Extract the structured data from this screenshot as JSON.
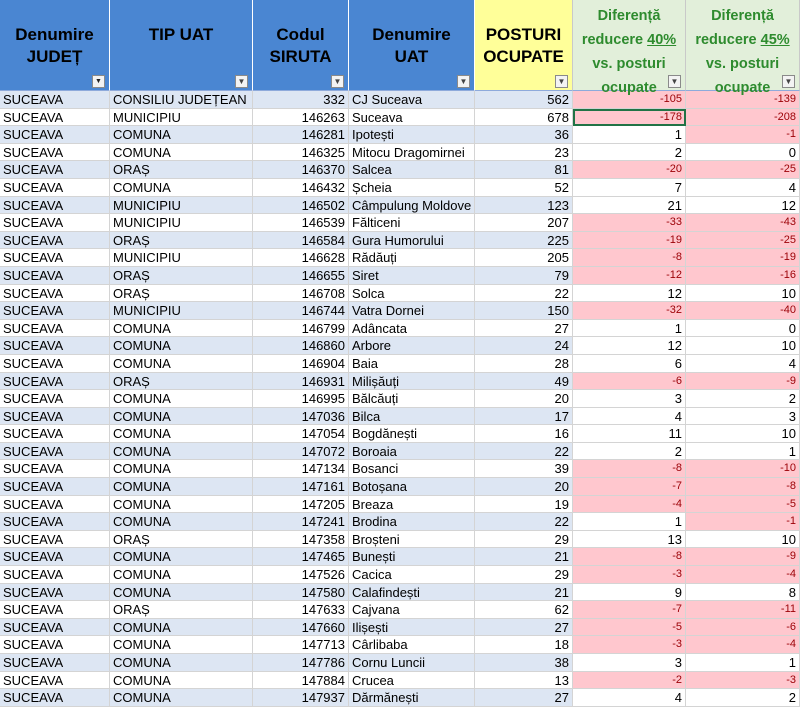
{
  "headers": [
    {
      "text": "Denumire\nJUDEȚ",
      "style": "blue",
      "filtered": true
    },
    {
      "text": "TIP UAT",
      "style": "blue",
      "filtered": false
    },
    {
      "text": "Codul\nSIRUTA",
      "style": "blue",
      "filtered": false
    },
    {
      "text": "Denumire\nUAT",
      "style": "blue",
      "filtered": false
    },
    {
      "text": "POSTURI\nOCUPATE",
      "style": "yellow",
      "filtered": false
    },
    {
      "pre": "Diferență\nreducere ",
      "pct": "40%",
      "post": "\nvs. posturi\nocupate",
      "style": "green",
      "filtered": false
    },
    {
      "pre": "Diferență\nreducere ",
      "pct": "45%",
      "post": "\nvs. posturi\nocupate",
      "style": "green",
      "filtered": false
    }
  ],
  "rows": [
    [
      "SUCEAVA",
      "CONSILIU JUDEȚEAN",
      "332",
      "CJ Suceava",
      "562",
      "-105",
      "-139"
    ],
    [
      "SUCEAVA",
      "MUNICIPIU",
      "146263",
      "Suceava",
      "678",
      "-178",
      "-208"
    ],
    [
      "SUCEAVA",
      "COMUNA",
      "146281",
      "Ipotești",
      "36",
      "1",
      "-1"
    ],
    [
      "SUCEAVA",
      "COMUNA",
      "146325",
      "Mitocu Dragomirnei",
      "23",
      "2",
      "0"
    ],
    [
      "SUCEAVA",
      "ORAȘ",
      "146370",
      "Salcea",
      "81",
      "-20",
      "-25"
    ],
    [
      "SUCEAVA",
      "COMUNA",
      "146432",
      "Șcheia",
      "52",
      "7",
      "4"
    ],
    [
      "SUCEAVA",
      "MUNICIPIU",
      "146502",
      "Câmpulung Moldove",
      "123",
      "21",
      "12"
    ],
    [
      "SUCEAVA",
      "MUNICIPIU",
      "146539",
      "Fălticeni",
      "207",
      "-33",
      "-43"
    ],
    [
      "SUCEAVA",
      "ORAȘ",
      "146584",
      "Gura Humorului",
      "225",
      "-19",
      "-25"
    ],
    [
      "SUCEAVA",
      "MUNICIPIU",
      "146628",
      "Rădăuți",
      "205",
      "-8",
      "-19"
    ],
    [
      "SUCEAVA",
      "ORAȘ",
      "146655",
      "Siret",
      "79",
      "-12",
      "-16"
    ],
    [
      "SUCEAVA",
      "ORAȘ",
      "146708",
      "Solca",
      "22",
      "12",
      "10"
    ],
    [
      "SUCEAVA",
      "MUNICIPIU",
      "146744",
      "Vatra Dornei",
      "150",
      "-32",
      "-40"
    ],
    [
      "SUCEAVA",
      "COMUNA",
      "146799",
      "Adâncata",
      "27",
      "1",
      "0"
    ],
    [
      "SUCEAVA",
      "COMUNA",
      "146860",
      "Arbore",
      "24",
      "12",
      "10"
    ],
    [
      "SUCEAVA",
      "COMUNA",
      "146904",
      "Baia",
      "28",
      "6",
      "4"
    ],
    [
      "SUCEAVA",
      "ORAȘ",
      "146931",
      "Milișăuți",
      "49",
      "-6",
      "-9"
    ],
    [
      "SUCEAVA",
      "COMUNA",
      "146995",
      "Bălcăuți",
      "20",
      "3",
      "2"
    ],
    [
      "SUCEAVA",
      "COMUNA",
      "147036",
      "Bilca",
      "17",
      "4",
      "3"
    ],
    [
      "SUCEAVA",
      "COMUNA",
      "147054",
      "Bogdănești",
      "16",
      "11",
      "10"
    ],
    [
      "SUCEAVA",
      "COMUNA",
      "147072",
      "Boroaia",
      "22",
      "2",
      "1"
    ],
    [
      "SUCEAVA",
      "COMUNA",
      "147134",
      "Bosanci",
      "39",
      "-8",
      "-10"
    ],
    [
      "SUCEAVA",
      "COMUNA",
      "147161",
      "Botoșana",
      "20",
      "-7",
      "-8"
    ],
    [
      "SUCEAVA",
      "COMUNA",
      "147205",
      "Breaza",
      "19",
      "-4",
      "-5"
    ],
    [
      "SUCEAVA",
      "COMUNA",
      "147241",
      "Brodina",
      "22",
      "1",
      "-1"
    ],
    [
      "SUCEAVA",
      "ORAȘ",
      "147358",
      "Broșteni",
      "29",
      "13",
      "10"
    ],
    [
      "SUCEAVA",
      "COMUNA",
      "147465",
      "Bunești",
      "21",
      "-8",
      "-9"
    ],
    [
      "SUCEAVA",
      "COMUNA",
      "147526",
      "Cacica",
      "29",
      "-3",
      "-4"
    ],
    [
      "SUCEAVA",
      "COMUNA",
      "147580",
      "Calafindești",
      "21",
      "9",
      "8"
    ],
    [
      "SUCEAVA",
      "ORAȘ",
      "147633",
      "Cajvana",
      "62",
      "-7",
      "-11"
    ],
    [
      "SUCEAVA",
      "COMUNA",
      "147660",
      "Ilișești",
      "27",
      "-5",
      "-6"
    ],
    [
      "SUCEAVA",
      "COMUNA",
      "147713",
      "Cârlibaba",
      "18",
      "-3",
      "-4"
    ],
    [
      "SUCEAVA",
      "COMUNA",
      "147786",
      "Cornu Luncii",
      "38",
      "3",
      "1"
    ],
    [
      "SUCEAVA",
      "COMUNA",
      "147884",
      "Crucea",
      "13",
      "-2",
      "-3"
    ],
    [
      "SUCEAVA",
      "COMUNA",
      "147937",
      "Dărmănești",
      "27",
      "4",
      "2"
    ]
  ],
  "selected_cell": {
    "row": 1,
    "col": 5
  },
  "icons": {
    "filter_dropdown": "chevron-down-icon",
    "filter_active": "filter-funnel-icon"
  },
  "colors": {
    "header_blue": "#4a86d2",
    "header_yellow": "#ffff99",
    "header_green": "#e2efda",
    "header_green_text": "#2e8b2e",
    "row_shade": "#dde6f3",
    "negative_fill": "#ffc7ce",
    "negative_text": "#9c0006",
    "selection": "#217346"
  }
}
